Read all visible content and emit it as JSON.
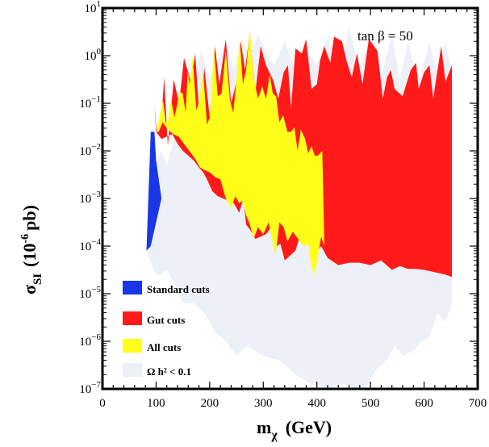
{
  "chart_data": {
    "type": "area",
    "xlabel": "m",
    "xlabel_sub": "χ",
    "xlabel_unit": "(GeV)",
    "ylabel": "σ",
    "ylabel_sub": "SI",
    "ylabel_unit": "(10",
    "ylabel_exp": "-6",
    "ylabel_tail": "pb)",
    "xlim": [
      0,
      700
    ],
    "ylim_log10": [
      -7,
      1
    ],
    "x_ticks": [
      0,
      100,
      200,
      300,
      400,
      500,
      600,
      700
    ],
    "y_ticks": [
      {
        "base": "10",
        "exp": "1",
        "value": 1
      },
      {
        "base": "10",
        "exp": "0",
        "value": 0
      },
      {
        "base": "10",
        "exp": "−1",
        "value": -1
      },
      {
        "base": "10",
        "exp": "−2",
        "value": -2
      },
      {
        "base": "10",
        "exp": "−3",
        "value": -3
      },
      {
        "base": "10",
        "exp": "−4",
        "value": -4
      },
      {
        "base": "10",
        "exp": "−5",
        "value": -5
      },
      {
        "base": "10",
        "exp": "−6",
        "value": -6
      },
      {
        "base": "10",
        "exp": "−7",
        "value": -7
      }
    ],
    "annotation": "tan β = 50",
    "legend_position": "bottom-left",
    "series": [
      {
        "name": "Ω h² < 0.1",
        "color": "#eef0f8",
        "points": [
          [
            85,
            -4.2
          ],
          [
            90,
            -2.5
          ],
          [
            110,
            -2.0
          ],
          [
            120,
            -2.3
          ],
          [
            130,
            -1.9
          ],
          [
            140,
            -1.4
          ],
          [
            150,
            -1.5
          ],
          [
            160,
            -1.1
          ],
          [
            170,
            -0.4
          ],
          [
            185,
            0.1
          ],
          [
            200,
            -0.5
          ],
          [
            215,
            -0.1
          ],
          [
            230,
            0.3
          ],
          [
            245,
            -0.3
          ],
          [
            260,
            0.35
          ],
          [
            275,
            0.0
          ],
          [
            290,
            0.45
          ],
          [
            305,
            0.1
          ],
          [
            320,
            -0.2
          ],
          [
            340,
            0.3
          ],
          [
            360,
            -0.3
          ],
          [
            380,
            0.1
          ],
          [
            400,
            -0.2
          ],
          [
            420,
            0.4
          ],
          [
            440,
            -0.5
          ],
          [
            460,
            0.6
          ],
          [
            480,
            -0.3
          ],
          [
            500,
            0.4
          ],
          [
            520,
            -0.4
          ],
          [
            540,
            0.4
          ],
          [
            555,
            -0.5
          ],
          [
            570,
            0.3
          ],
          [
            590,
            -0.6
          ],
          [
            610,
            0.3
          ],
          [
            625,
            -0.4
          ],
          [
            640,
            0.3
          ],
          [
            652,
            -0.4
          ],
          [
            652,
            -5.2
          ],
          [
            640,
            -5.6
          ],
          [
            625,
            -5.4
          ],
          [
            610,
            -5.9
          ],
          [
            595,
            -6.0
          ],
          [
            580,
            -6.2
          ],
          [
            560,
            -6.3
          ],
          [
            545,
            -6.1
          ],
          [
            530,
            -6.4
          ],
          [
            510,
            -6.6
          ],
          [
            490,
            -7.0
          ],
          [
            470,
            -7.0
          ],
          [
            450,
            -6.9
          ],
          [
            420,
            -7.0
          ],
          [
            390,
            -6.9
          ],
          [
            360,
            -6.7
          ],
          [
            330,
            -6.4
          ],
          [
            300,
            -6.3
          ],
          [
            270,
            -6.1
          ],
          [
            250,
            -6.3
          ],
          [
            230,
            -6.0
          ],
          [
            210,
            -5.8
          ],
          [
            190,
            -5.4
          ],
          [
            170,
            -5.2
          ],
          [
            150,
            -5.2
          ],
          [
            135,
            -4.8
          ],
          [
            120,
            -4.5
          ],
          [
            110,
            -4.6
          ],
          [
            100,
            -4.6
          ]
        ]
      },
      {
        "name": "Standard cuts",
        "color": "#1a37e6",
        "points": [
          [
            90,
            -1.6
          ],
          [
            97,
            -1.6
          ],
          [
            100,
            -2.2
          ],
          [
            105,
            -2.6
          ],
          [
            110,
            -3.0
          ],
          [
            90,
            -4.0
          ],
          [
            82,
            -4.1
          ]
        ]
      },
      {
        "name": "Gut cuts",
        "color": "#ff1a1a",
        "points": [
          [
            97,
            -1.0
          ],
          [
            101,
            -1.6
          ],
          [
            106,
            -1.4
          ],
          [
            110,
            -1.35
          ],
          [
            115,
            -0.45
          ],
          [
            122,
            -1.9
          ],
          [
            133,
            -0.5
          ],
          [
            143,
            -1.0
          ],
          [
            152,
            -0.05
          ],
          [
            165,
            -0.55
          ],
          [
            173,
            0.05
          ],
          [
            182,
            -1.5
          ],
          [
            190,
            -0.25
          ],
          [
            200,
            -1.3
          ],
          [
            210,
            0.2
          ],
          [
            218,
            -0.6
          ],
          [
            230,
            0.35
          ],
          [
            240,
            -1.0
          ],
          [
            250,
            -0.55
          ],
          [
            258,
            0.3
          ],
          [
            266,
            -0.3
          ],
          [
            275,
            0.5
          ],
          [
            285,
            -0.8
          ],
          [
            295,
            0.2
          ],
          [
            305,
            -0.2
          ],
          [
            318,
            -0.5
          ],
          [
            328,
            -0.9
          ],
          [
            338,
            -0.35
          ],
          [
            346,
            -0.2
          ],
          [
            352,
            -1.1
          ],
          [
            360,
            0.15
          ],
          [
            372,
            0.05
          ],
          [
            380,
            0.35
          ],
          [
            390,
            -0.7
          ],
          [
            400,
            -0.6
          ],
          [
            406,
            -0.1
          ],
          [
            414,
            0.2
          ],
          [
            425,
            -0.15
          ],
          [
            432,
            0.4
          ],
          [
            447,
            0.3
          ],
          [
            455,
            -0.1
          ],
          [
            465,
            -0.45
          ],
          [
            475,
            0.05
          ],
          [
            485,
            -0.6
          ],
          [
            497,
            0.35
          ],
          [
            513,
            0.1
          ],
          [
            523,
            -0.9
          ],
          [
            531,
            -0.45
          ],
          [
            538,
            -0.3
          ],
          [
            545,
            -0.7
          ],
          [
            560,
            -0.85
          ],
          [
            575,
            -0.3
          ],
          [
            585,
            -0.15
          ],
          [
            590,
            -0.7
          ],
          [
            600,
            -0.35
          ],
          [
            610,
            -0.2
          ],
          [
            617,
            -0.9
          ],
          [
            625,
            -0.3
          ],
          [
            632,
            0.2
          ],
          [
            640,
            -0.55
          ],
          [
            652,
            -0.2
          ],
          [
            652,
            -4.65
          ],
          [
            640,
            -4.6
          ],
          [
            620,
            -4.55
          ],
          [
            600,
            -4.5
          ],
          [
            585,
            -4.48
          ],
          [
            570,
            -4.48
          ],
          [
            555,
            -4.42
          ],
          [
            540,
            -4.5
          ],
          [
            520,
            -4.3
          ],
          [
            500,
            -4.4
          ],
          [
            480,
            -4.35
          ],
          [
            460,
            -4.35
          ],
          [
            440,
            -4.4
          ],
          [
            420,
            -4.25
          ],
          [
            408,
            -4.0
          ],
          [
            395,
            -4.2
          ],
          [
            385,
            -3.8
          ],
          [
            375,
            -4.0
          ],
          [
            368,
            -3.8
          ],
          [
            360,
            -4.1
          ],
          [
            350,
            -4.2
          ],
          [
            340,
            -4.3
          ],
          [
            332,
            -3.95
          ],
          [
            325,
            -4.0
          ],
          [
            315,
            -3.6
          ],
          [
            305,
            -3.75
          ],
          [
            295,
            -3.8
          ],
          [
            285,
            -3.85
          ],
          [
            275,
            -3.65
          ],
          [
            268,
            -3.55
          ],
          [
            263,
            -3.0
          ],
          [
            255,
            -3.3
          ],
          [
            245,
            -3.1
          ],
          [
            235,
            -3.05
          ],
          [
            225,
            -3.0
          ],
          [
            215,
            -2.95
          ],
          [
            205,
            -2.85
          ],
          [
            195,
            -2.6
          ],
          [
            188,
            -2.45
          ],
          [
            180,
            -2.35
          ],
          [
            170,
            -2.2
          ],
          [
            160,
            -2.1
          ],
          [
            150,
            -2.0
          ],
          [
            140,
            -1.85
          ],
          [
            130,
            -1.65
          ],
          [
            120,
            -1.7
          ],
          [
            110,
            -1.75
          ],
          [
            100,
            -1.6
          ]
        ]
      },
      {
        "name": "All cuts",
        "color": "#ffff1a",
        "points": [
          [
            101,
            -1.6
          ],
          [
            106,
            -1.3
          ],
          [
            113,
            -0.95
          ],
          [
            118,
            -1.4
          ],
          [
            122,
            -1.4
          ],
          [
            128,
            -0.9
          ],
          [
            134,
            -1.3
          ],
          [
            138,
            -1.1
          ],
          [
            144,
            -0.75
          ],
          [
            150,
            -0.8
          ],
          [
            155,
            -1.2
          ],
          [
            159,
            -0.35
          ],
          [
            163,
            -0.6
          ],
          [
            168,
            0.0
          ],
          [
            175,
            -1.15
          ],
          [
            180,
            -0.95
          ],
          [
            188,
            -0.35
          ],
          [
            195,
            -1.45
          ],
          [
            200,
            -1.3
          ],
          [
            208,
            0.15
          ],
          [
            215,
            -0.85
          ],
          [
            222,
            -0.8
          ],
          [
            230,
            0.1
          ],
          [
            238,
            -0.95
          ],
          [
            244,
            -1.2
          ],
          [
            250,
            -0.5
          ],
          [
            256,
            0.35
          ],
          [
            262,
            -0.6
          ],
          [
            268,
            -0.3
          ],
          [
            275,
            0.55
          ],
          [
            282,
            -0.45
          ],
          [
            290,
            -0.9
          ],
          [
            298,
            -0.65
          ],
          [
            305,
            -0.9
          ],
          [
            312,
            -0.4
          ],
          [
            318,
            -0.8
          ],
          [
            324,
            -0.85
          ],
          [
            330,
            -1.4
          ],
          [
            337,
            -1.25
          ],
          [
            345,
            -1.6
          ],
          [
            352,
            -1.6
          ],
          [
            358,
            -1.5
          ],
          [
            364,
            -2.0
          ],
          [
            370,
            -1.55
          ],
          [
            378,
            -1.75
          ],
          [
            384,
            -2.05
          ],
          [
            390,
            -1.9
          ],
          [
            396,
            -2.1
          ],
          [
            402,
            -2.1
          ],
          [
            410,
            -2.0
          ],
          [
            414,
            -4.0
          ],
          [
            408,
            -3.8
          ],
          [
            396,
            -4.6
          ],
          [
            390,
            -4.45
          ],
          [
            384,
            -3.95
          ],
          [
            375,
            -4.0
          ],
          [
            365,
            -3.85
          ],
          [
            355,
            -3.7
          ],
          [
            345,
            -3.9
          ],
          [
            338,
            -3.6
          ],
          [
            330,
            -3.5
          ],
          [
            323,
            -4.2
          ],
          [
            315,
            -3.8
          ],
          [
            310,
            -3.5
          ],
          [
            300,
            -3.75
          ],
          [
            290,
            -3.6
          ],
          [
            282,
            -3.85
          ],
          [
            275,
            -3.55
          ],
          [
            268,
            -3.35
          ],
          [
            262,
            -3.05
          ],
          [
            255,
            -3.1
          ],
          [
            248,
            -2.95
          ],
          [
            240,
            -3.2
          ],
          [
            230,
            -3.0
          ],
          [
            220,
            -2.6
          ],
          [
            210,
            -2.55
          ],
          [
            200,
            -2.45
          ],
          [
            190,
            -2.4
          ],
          [
            182,
            -2.35
          ],
          [
            172,
            -2.15
          ],
          [
            162,
            -2.0
          ],
          [
            152,
            -1.85
          ],
          [
            142,
            -1.7
          ],
          [
            132,
            -1.65
          ],
          [
            122,
            -1.55
          ],
          [
            112,
            -1.4
          ],
          [
            105,
            -1.6
          ]
        ]
      }
    ],
    "legend_order": [
      1,
      2,
      3,
      0
    ]
  }
}
